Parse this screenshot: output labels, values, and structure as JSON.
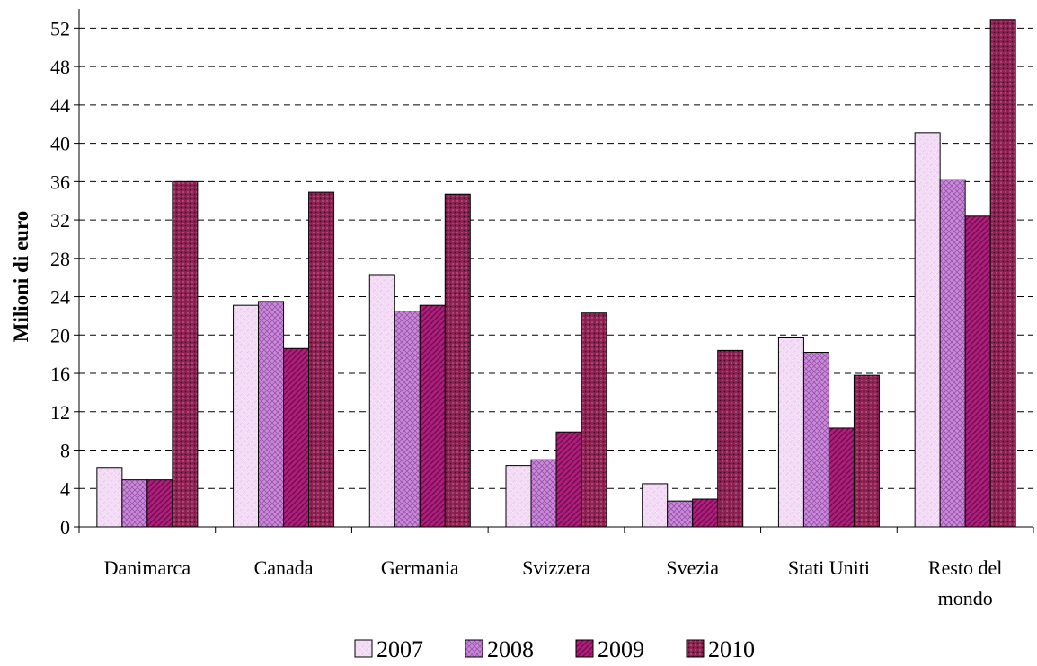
{
  "chart_data": {
    "type": "bar",
    "title": "",
    "xlabel": "",
    "ylabel": "Milioni di euro",
    "ylim": [
      0,
      54
    ],
    "yticks": [
      0,
      4,
      8,
      12,
      16,
      20,
      24,
      28,
      32,
      36,
      40,
      44,
      48,
      52
    ],
    "grid": "horizontal dashed",
    "legend_position": "bottom",
    "categories": [
      [
        "Danimarca"
      ],
      [
        "Canada"
      ],
      [
        "Germania"
      ],
      [
        "Svizzera"
      ],
      [
        "Svezia"
      ],
      [
        "Stati Uniti"
      ],
      [
        "Resto del",
        "mondo"
      ]
    ],
    "series": [
      {
        "name": "2007",
        "color": "#f2d9f5",
        "pattern": "light-dots",
        "values": [
          6.2,
          23.1,
          26.3,
          6.4,
          4.5,
          19.7,
          41.1
        ]
      },
      {
        "name": "2008",
        "color": "#c07ed0",
        "pattern": "crosshatch",
        "values": [
          4.9,
          23.5,
          22.5,
          7.0,
          2.7,
          18.2,
          36.2
        ]
      },
      {
        "name": "2009",
        "color": "#a0186f",
        "pattern": "diagonal",
        "values": [
          4.9,
          18.6,
          23.1,
          9.9,
          2.9,
          10.3,
          32.4
        ]
      },
      {
        "name": "2010",
        "color": "#8a2050",
        "pattern": "dark-dots",
        "values": [
          36.0,
          34.9,
          34.7,
          22.3,
          18.4,
          15.8,
          52.9
        ]
      }
    ]
  }
}
